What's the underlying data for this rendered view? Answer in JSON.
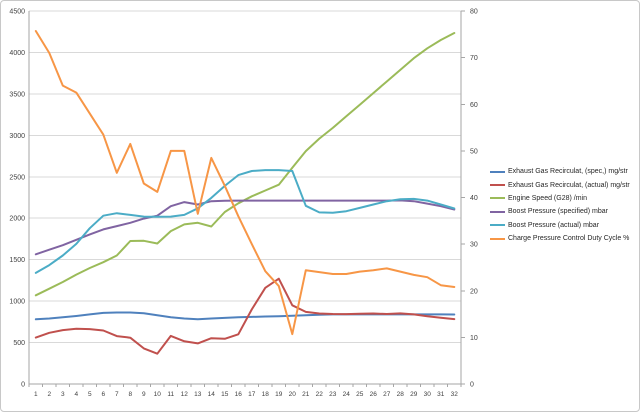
{
  "chart_data": {
    "type": "line",
    "title": "",
    "x_labels": [
      "1",
      "2",
      "3",
      "4",
      "5",
      "6",
      "7",
      "8",
      "9",
      "10",
      "11",
      "12",
      "13",
      "14",
      "15",
      "16",
      "17",
      "18",
      "19",
      "20",
      "21",
      "22",
      "23",
      "24",
      "25",
      "26",
      "27",
      "28",
      "29",
      "30",
      "31",
      "32"
    ],
    "left_axis": {
      "min": 0,
      "max": 4500,
      "step": 500,
      "labels": [
        "0",
        "500",
        "1000",
        "1500",
        "2000",
        "2500",
        "3000",
        "3500",
        "4000",
        "4500"
      ]
    },
    "right_axis": {
      "min": 0,
      "max": 80,
      "step": 10,
      "labels": [
        "0",
        "10",
        "20",
        "30",
        "40",
        "50",
        "60",
        "70",
        "80"
      ]
    },
    "grid": true,
    "legend_position": "right",
    "series": [
      {
        "name": "Exhaust Gas Recirculat, (spec,) mg/str",
        "color": "#4F81BD",
        "axis": "left",
        "values": [
          780,
          790,
          805,
          820,
          840,
          858,
          862,
          862,
          854,
          830,
          806,
          790,
          782,
          790,
          798,
          806,
          810,
          814,
          818,
          824,
          830,
          836,
          840,
          840,
          840,
          840,
          840,
          840,
          840,
          840,
          840,
          838
        ]
      },
      {
        "name": "Exhaust Gas Recirculat, (actual)  mg/str",
        "color": "#C0504D",
        "axis": "left",
        "values": [
          560,
          618,
          650,
          666,
          662,
          646,
          578,
          558,
          430,
          365,
          580,
          515,
          490,
          552,
          545,
          600,
          900,
          1160,
          1270,
          950,
          870,
          850,
          845,
          843,
          848,
          850,
          845,
          852,
          840,
          818,
          800,
          783
        ]
      },
      {
        "name": "Engine Speed (G28)  /min",
        "color": "#9BBB59",
        "axis": "left",
        "values": [
          1070,
          1150,
          1230,
          1320,
          1400,
          1470,
          1550,
          1725,
          1728,
          1695,
          1845,
          1925,
          1945,
          1900,
          2075,
          2180,
          2265,
          2335,
          2405,
          2610,
          2810,
          2960,
          3090,
          3230,
          3370,
          3510,
          3650,
          3790,
          3930,
          4050,
          4150,
          4235
        ]
      },
      {
        "name": "Boost Pressure (specified) mbar",
        "color": "#8064A2",
        "axis": "left",
        "values": [
          1565,
          1620,
          1675,
          1740,
          1805,
          1865,
          1905,
          1945,
          1995,
          2030,
          2145,
          2195,
          2165,
          2205,
          2210,
          2213,
          2213,
          2213,
          2213,
          2213,
          2213,
          2213,
          2213,
          2213,
          2213,
          2213,
          2213,
          2215,
          2205,
          2177,
          2145,
          2105
        ]
      },
      {
        "name": "Boost Pressure (actual)  mbar",
        "color": "#4BACC6",
        "axis": "left",
        "values": [
          1340,
          1435,
          1550,
          1690,
          1880,
          2030,
          2060,
          2040,
          2020,
          2018,
          2020,
          2040,
          2120,
          2245,
          2390,
          2520,
          2570,
          2580,
          2580,
          2570,
          2150,
          2070,
          2065,
          2085,
          2125,
          2165,
          2205,
          2230,
          2233,
          2213,
          2165,
          2117
        ]
      },
      {
        "name": "Charge Pressure Control Duty Cycle  %",
        "color": "#F79646",
        "axis": "right",
        "values": [
          75.7,
          71,
          64,
          62.5,
          58,
          53.5,
          45.3,
          51.5,
          43,
          41.2,
          50,
          50,
          36.5,
          48.5,
          42.5,
          36,
          30,
          24.2,
          21,
          10.7,
          24.4,
          24,
          23.6,
          23.6,
          24.1,
          24.4,
          24.8,
          24.1,
          23.4,
          22.9,
          21.2,
          20.8
        ]
      }
    ]
  },
  "colors": {
    "background": "#FFFFFF",
    "gridline": "#D9D9D9",
    "axis": "#A6A6A6",
    "tick": "#A6A6A6",
    "label_text": "#3F3F3F",
    "frame_border": "#C8C8C8"
  }
}
